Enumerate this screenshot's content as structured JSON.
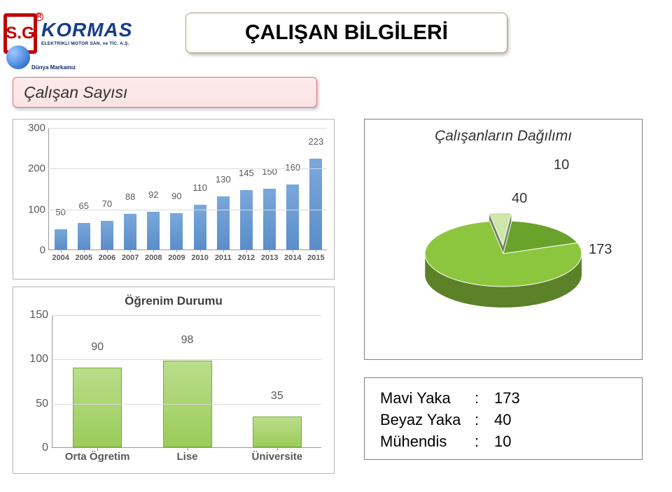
{
  "logo": {
    "sg": "S.G",
    "brand": "KORMAS",
    "sub": "ELEKTRİKLİ MOTOR SAN. ve TİC. A.Ş.",
    "tag": "Dünya Markamız"
  },
  "title": "ÇALIŞAN BİLGİLERİ",
  "subtitle": "Çalışan Sayısı",
  "chart1": {
    "type": "bar",
    "ylim": [
      0,
      300
    ],
    "ytick_step": 100,
    "yticks": [
      0,
      100,
      200,
      300
    ],
    "categories": [
      "2004",
      "2005",
      "2006",
      "2007",
      "2008",
      "2009",
      "2010",
      "2011",
      "2012",
      "2013",
      "2014",
      "2015"
    ],
    "values": [
      50,
      65,
      70,
      88,
      92,
      90,
      110,
      130,
      145,
      150,
      160,
      223
    ],
    "bar_color": "#5a8dc9",
    "grid_color": "#d9d9d9",
    "axis_color": "#999999",
    "label_fontsize": 13,
    "xlabel_fontsize": 11
  },
  "pie": {
    "title": "Çalışanların Dağılımı",
    "slices": [
      {
        "label": "173",
        "value": 173,
        "color": "#8cc63f"
      },
      {
        "label": "40",
        "value": 40,
        "color": "#6aa32b"
      },
      {
        "label": "10",
        "value": 10,
        "color": "#cde6a9"
      }
    ],
    "label_fontsize": 20,
    "depth": 30,
    "tilt": 0.42
  },
  "legend": {
    "rows": [
      {
        "label": "Mavi Yaka",
        "value": "173"
      },
      {
        "label": "Beyaz Yaka",
        "value": "40"
      },
      {
        "label": "Mühendis",
        "value": "10"
      }
    ]
  },
  "chart2": {
    "type": "bar",
    "title": "Öğrenim Durumu",
    "ylim": [
      0,
      150
    ],
    "ytick_step": 50,
    "yticks": [
      0,
      50,
      100,
      150
    ],
    "categories": [
      "Orta Ögretim",
      "Lise",
      "Üniversite"
    ],
    "values": [
      90,
      98,
      35
    ],
    "bar_color": "#9ccc5a",
    "bar_border": "#7aa93f",
    "grid_color": "#d9d9d9",
    "axis_color": "#999999",
    "label_fontsize": 16,
    "title_fontsize": 17
  }
}
